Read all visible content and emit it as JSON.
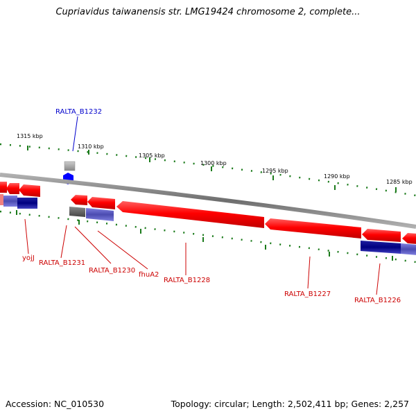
{
  "title": "Cupriavidus taiwanensis str. LMG19424 chromosome 2, complete...",
  "footer": {
    "accession": "Accession: NC_010530",
    "topology": "Topology: circular; Length: 2,502,411 bp; Genes: 2,257"
  },
  "kbp_ticks": [
    "1315 kbp",
    "1310 kbp",
    "1305 kbp",
    "1300 kbp",
    "1295 kbp",
    "1290 kbp",
    "1285 kbp"
  ],
  "gene_labels": {
    "top": [
      "RALTA_B1232"
    ],
    "bottom": [
      "yojJ",
      "RALTA_B1231",
      "RALTA_B1230",
      "fhuA2",
      "RALTA_B1228",
      "RALTA_B1227",
      "RALTA_B1226"
    ]
  },
  "colors": {
    "forward_strand_gene": "#ff0000",
    "protein_product": "#4a4ab0",
    "highlight_blue": "#0000ff",
    "grey_feature": "#888888",
    "backbone": "#8c8c8c",
    "tick": "#1a7a1a",
    "label_red": "#cc0000",
    "label_blue": "#0000cc"
  }
}
